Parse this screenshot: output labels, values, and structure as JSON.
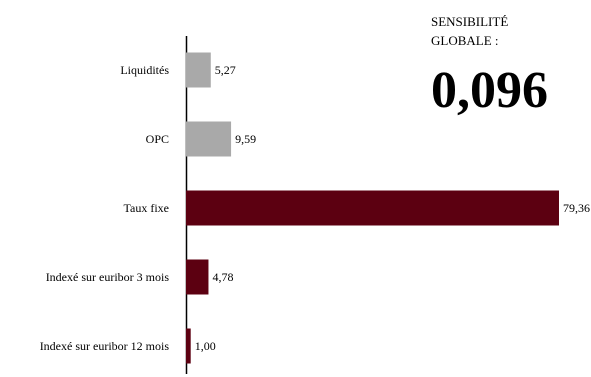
{
  "chart_data": {
    "type": "bar",
    "orientation": "horizontal",
    "categories": [
      "Liquidités",
      "OPC",
      "Taux fixe",
      "Indexé sur euribor 3 mois",
      "Indexé sur euribor 12 mois"
    ],
    "values": [
      5.27,
      9.59,
      79.36,
      4.78,
      1.0
    ],
    "value_labels": [
      "5,27",
      "9,59",
      "79,36",
      "4,78",
      "1,00"
    ],
    "colors": [
      "#a9a9a9",
      "#a9a9a9",
      "#5c0011",
      "#5c0011",
      "#5c0011"
    ],
    "xlim": [
      0,
      80
    ],
    "grid": false,
    "legend": "none"
  },
  "sensitivity": {
    "caption_line1": "SENSIBILITÉ",
    "caption_line2": "GLOBALE :",
    "value": "0,096"
  }
}
